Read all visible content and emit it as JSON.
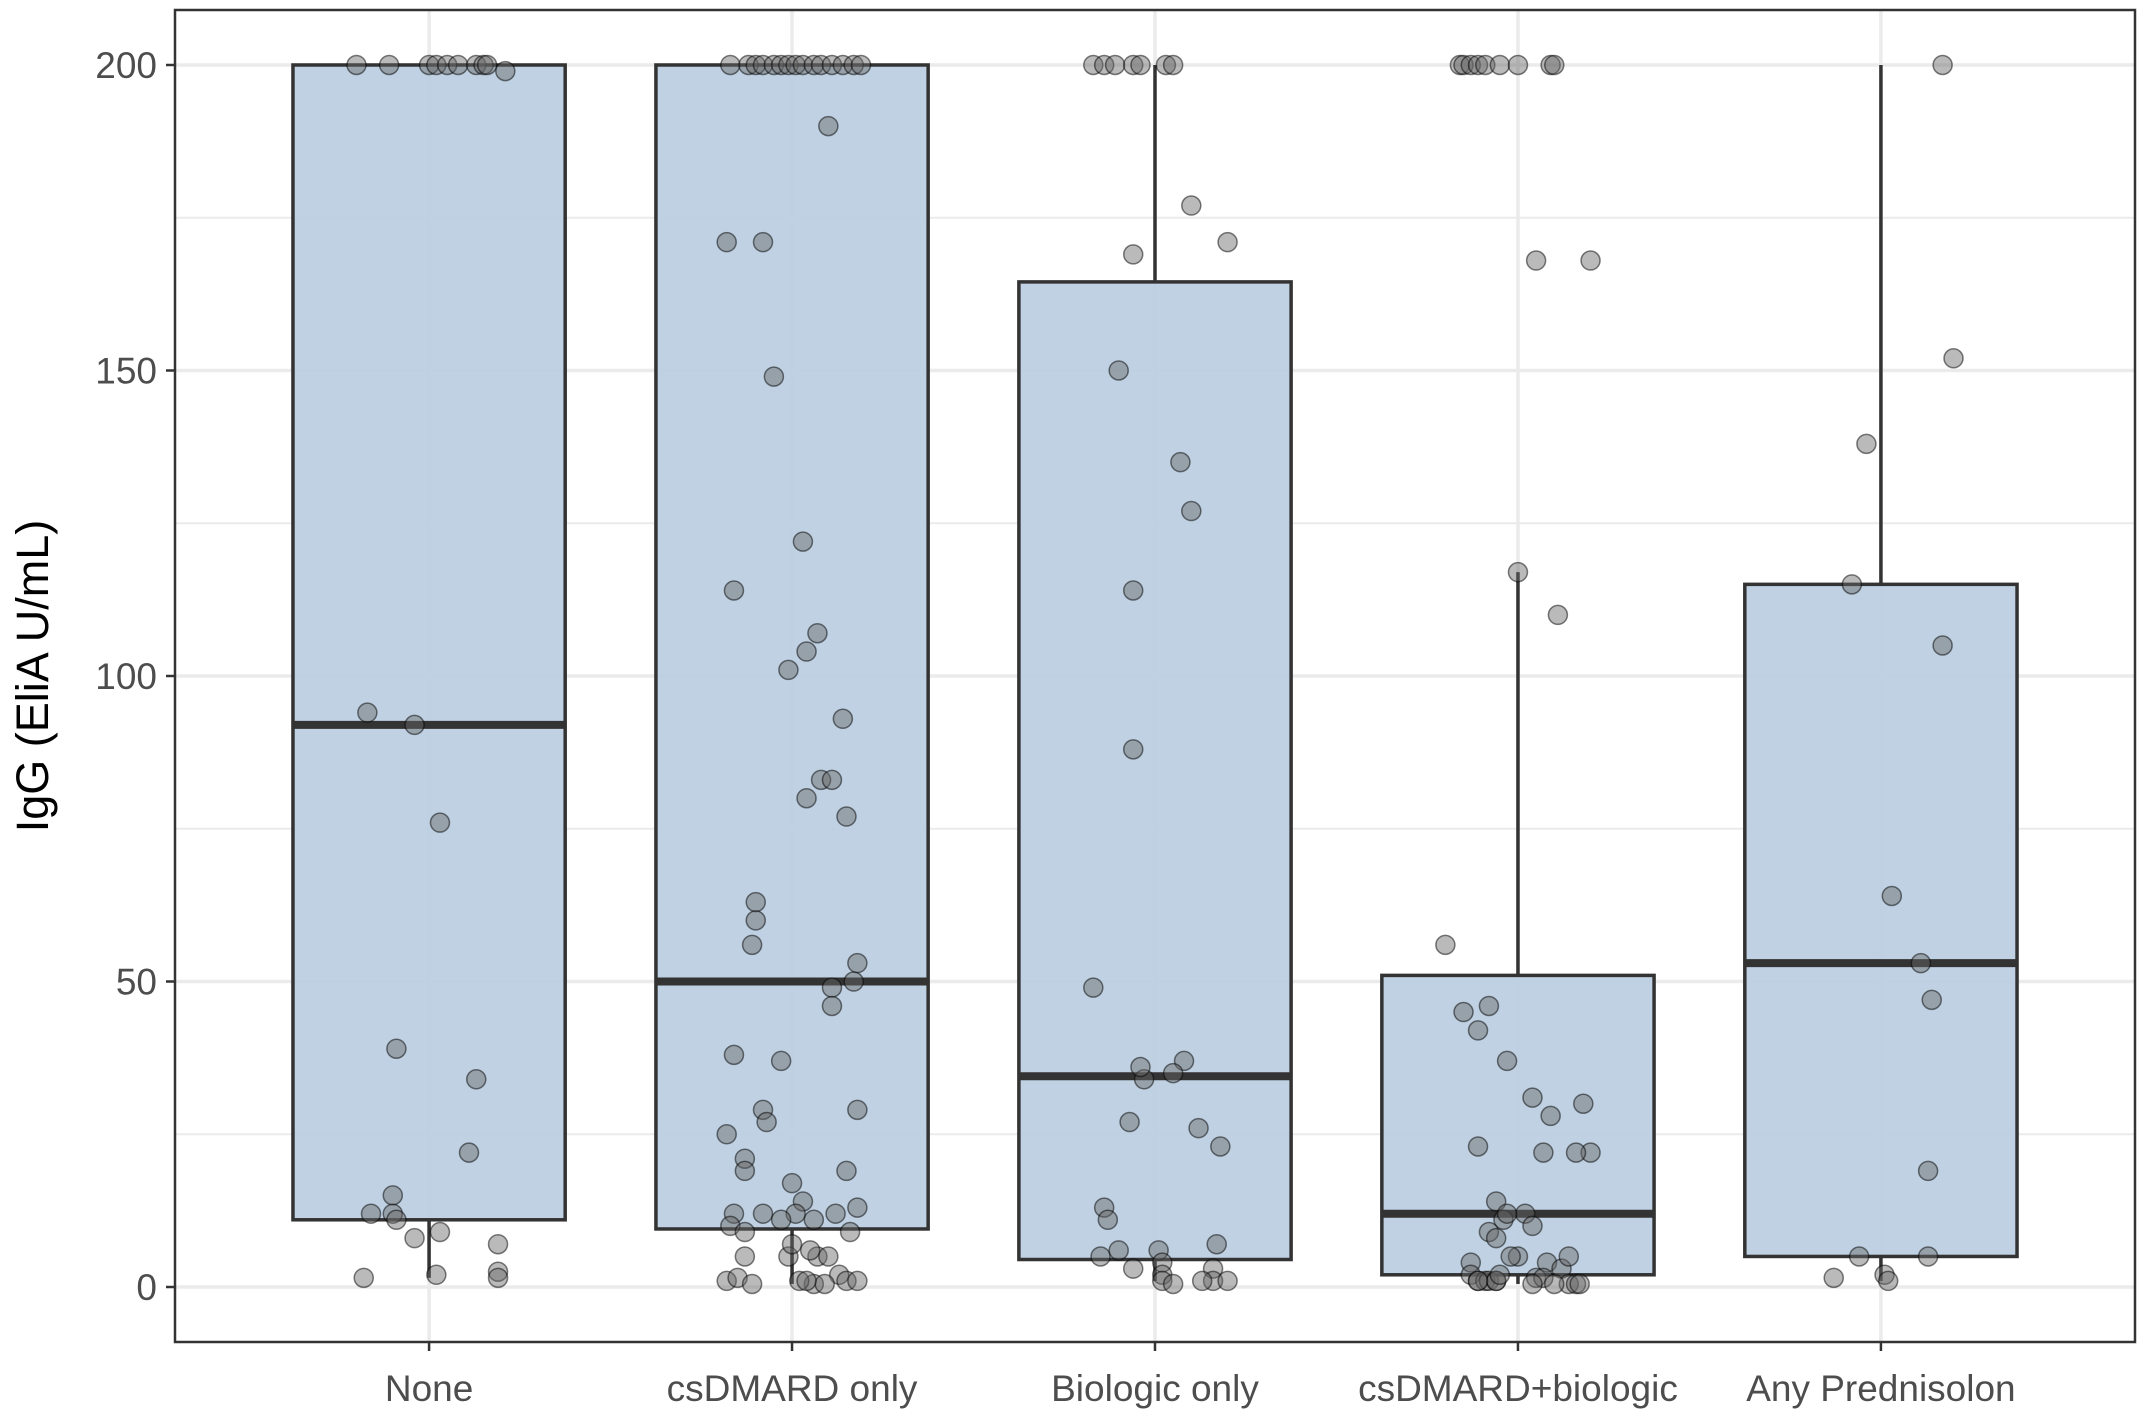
{
  "chart_data": {
    "type": "box",
    "title": "",
    "xlabel": "",
    "ylabel": "IgG (EliA U/mL)",
    "ylim": [
      -9,
      209
    ],
    "yticks": [
      0,
      50,
      100,
      150,
      200
    ],
    "grid": true,
    "legend": "none",
    "colors": {
      "box_fill": "#bccfe0",
      "box_stroke": "#333333",
      "point": "#666666",
      "grid": "#ebebeb",
      "panel_border": "#333333"
    },
    "categories": [
      "None",
      "csDMARD only",
      "Biologic only",
      "csDMARD+biologic",
      "Any Prednisolon"
    ],
    "boxes": [
      {
        "category": "None",
        "lower_whisker": 1.5,
        "q1": 11,
        "median": 92,
        "q3": 200,
        "upper_whisker": 200
      },
      {
        "category": "csDMARD only",
        "lower_whisker": 0.5,
        "q1": 9.5,
        "median": 50,
        "q3": 200,
        "upper_whisker": 200
      },
      {
        "category": "Biologic only",
        "lower_whisker": 1,
        "q1": 4.5,
        "median": 34.5,
        "q3": 164.5,
        "upper_whisker": 200
      },
      {
        "category": "csDMARD+biologic",
        "lower_whisker": 0.5,
        "q1": 2,
        "median": 12,
        "q3": 51,
        "upper_whisker": 117
      },
      {
        "category": "Any Prednisolon",
        "lower_whisker": 1,
        "q1": 5,
        "median": 53,
        "q3": 115,
        "upper_whisker": 200
      }
    ],
    "points": [
      {
        "category": "None",
        "x_offset": [
          -0.2,
          -0.11,
          0.0,
          0.02,
          0.05,
          0.08,
          0.13,
          0.15,
          0.16,
          0.21,
          -0.17,
          -0.09,
          0.13,
          0.03,
          -0.04,
          0.11,
          -0.1,
          -0.16,
          -0.1,
          -0.09,
          -0.04,
          0.03,
          0.19,
          0.19,
          -0.18,
          0.02,
          0.19
        ],
        "values": [
          200,
          200,
          200,
          200,
          200,
          200,
          200,
          200,
          200,
          199,
          94,
          39,
          34,
          76,
          92,
          22,
          15,
          12,
          12,
          11,
          8,
          9,
          7,
          2.5,
          1.5,
          2,
          1.5
        ]
      },
      {
        "category": "csDMARD only",
        "x_offset": [
          -0.17,
          -0.12,
          -0.1,
          -0.08,
          -0.05,
          -0.03,
          -0.01,
          0.01,
          0.03,
          0.06,
          0.08,
          0.11,
          0.14,
          0.17,
          0.19,
          0.1,
          -0.18,
          -0.08,
          -0.05,
          0.03,
          -0.01,
          0.07,
          0.04,
          0.14,
          -0.16,
          0.08,
          0.11,
          -0.1,
          0.15,
          0.18,
          0.17,
          0.04,
          -0.11,
          -0.1,
          0.11,
          -0.16,
          -0.03,
          -0.08,
          -0.07,
          -0.13,
          -0.13,
          0.18,
          0.11,
          -0.18,
          0.0,
          0.15,
          0.18,
          0.03,
          -0.08,
          0.01,
          -0.03,
          0.06,
          0.12,
          -0.16,
          -0.17,
          -0.13,
          -0.01,
          0.07,
          0.16,
          0.0,
          -0.13,
          0.05,
          0.1,
          0.13,
          0.15,
          -0.18,
          -0.15,
          -0.11,
          0.06,
          0.09,
          0.18,
          0.02,
          0.04
        ],
        "values": [
          200,
          200,
          200,
          200,
          200,
          200,
          200,
          200,
          200,
          200,
          200,
          200,
          200,
          200,
          200,
          190,
          171,
          171,
          149,
          122,
          101,
          107,
          104,
          93,
          114,
          83,
          83,
          63,
          77,
          53,
          50,
          80,
          56,
          60,
          49,
          38,
          37,
          29,
          27,
          21,
          19,
          29,
          46,
          25,
          17,
          19,
          13,
          14,
          12,
          12,
          11,
          11,
          12,
          12,
          10,
          9,
          5,
          5,
          9,
          7,
          5,
          6,
          5,
          2,
          1,
          1,
          1.5,
          0.5,
          0.5,
          0.5,
          1,
          1,
          1
        ]
      },
      {
        "category": "Biologic only",
        "x_offset": [
          -0.17,
          -0.14,
          -0.11,
          -0.06,
          -0.04,
          0.03,
          0.05,
          -0.06,
          0.1,
          0.2,
          -0.1,
          0.07,
          0.1,
          -0.06,
          -0.06,
          -0.17,
          0.08,
          0.05,
          -0.03,
          -0.07,
          0.12,
          -0.04,
          0.18,
          0.16,
          0.17,
          -0.14,
          -0.13,
          -0.1,
          -0.15,
          -0.06,
          0.01,
          0.02,
          0.02,
          0.16,
          0.13,
          0.2,
          0.02,
          0.05
        ],
        "values": [
          200,
          200,
          200,
          200,
          200,
          200,
          200,
          169,
          177,
          171,
          150,
          135,
          127,
          114,
          88,
          49,
          37,
          35,
          34,
          27,
          26,
          36,
          23,
          3,
          7,
          13,
          11,
          6,
          5,
          3,
          6,
          4,
          2,
          1,
          1,
          1,
          1,
          0.5
        ]
      },
      {
        "category": "csDMARD+biologic",
        "x_offset": [
          -0.16,
          -0.15,
          -0.13,
          -0.11,
          -0.09,
          -0.05,
          0.0,
          0.09,
          0.1,
          0.05,
          0.2,
          0.0,
          0.11,
          -0.2,
          -0.15,
          -0.11,
          -0.08,
          -0.03,
          0.04,
          0.09,
          0.18,
          0.2,
          0.16,
          0.07,
          -0.11,
          -0.06,
          -0.04,
          0.02,
          0.04,
          -0.08,
          -0.06,
          -0.03,
          0.0,
          -0.13,
          -0.02,
          0.08,
          0.12,
          0.14,
          -0.13,
          -0.11,
          -0.09,
          -0.08,
          -0.06,
          -0.06,
          0.05,
          0.14,
          0.16,
          0.17,
          -0.11,
          0.07,
          -0.05,
          0.1,
          0.04
        ],
        "values": [
          200,
          200,
          200,
          200,
          200,
          200,
          200,
          200,
          200,
          168,
          168,
          117,
          110,
          56,
          45,
          42,
          46,
          37,
          31,
          28,
          30,
          22,
          22,
          22,
          23,
          14,
          11,
          12,
          10,
          9,
          8,
          12,
          5,
          4,
          5,
          4,
          3,
          5,
          2,
          1,
          1,
          1,
          1,
          1,
          1.5,
          0.5,
          0.5,
          0.5,
          1,
          1.5,
          2,
          0.5,
          0.5
        ]
      },
      {
        "category": "Any Prednisolon",
        "x_offset": [
          0.17,
          0.2,
          -0.04,
          -0.08,
          0.17,
          0.03,
          0.11,
          0.14,
          0.13,
          0.13,
          -0.06,
          -0.13,
          0.01,
          0.02
        ],
        "values": [
          200,
          152,
          138,
          115,
          105,
          64,
          53,
          47,
          19,
          5,
          5,
          1.5,
          2,
          1
        ]
      }
    ]
  }
}
